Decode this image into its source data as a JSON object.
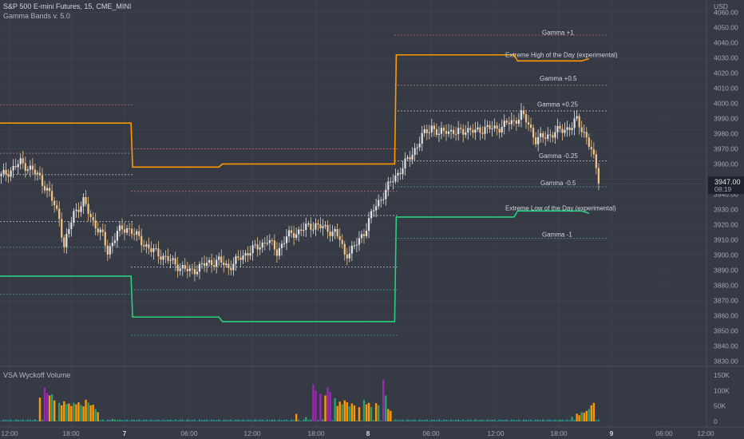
{
  "header": {
    "symbol_line": "S&P 500 E-mini Futures, 15, CME_MINI",
    "indicator_name": "Gamma Bands v. 5.0"
  },
  "volume_pane": {
    "label": "VSA Wyckoff Volume"
  },
  "currency_label": "USD",
  "price_badge": {
    "price": "3947.00",
    "countdown": "08:19"
  },
  "colors": {
    "background": "#363a45",
    "grid": "#41454f",
    "candle_up": "#e2e3e6",
    "candle_down": "#f2c587",
    "extreme_high": "#ff9800",
    "extreme_low": "#26d07c",
    "gamma_pos_1": "#e0607e",
    "gamma_pos_05": "#d07a8a",
    "gamma_025": "#c9ccd3",
    "gamma_neg_05": "#4aa3a0",
    "gamma_neg_1": "#3f9ea0",
    "vol_purple": "#9c27b0",
    "vol_orange": "#ff9800",
    "vol_green": "#2e9e6e",
    "vol_teal": "#2a8c8c"
  },
  "chart_data": {
    "type": "candlestick",
    "title": "S&P 500 E-mini Futures, 15, CME_MINI",
    "timeframe": "15",
    "x_ticks": [
      "12:00",
      "18:00",
      "7",
      "06:00",
      "12:00",
      "18:00",
      "8",
      "06:00",
      "12:00",
      "18:00",
      "9",
      "06:00",
      "12:00"
    ],
    "y_axis": {
      "ticks": [
        3830,
        3840,
        3850,
        3860,
        3870,
        3880,
        3890,
        3900,
        3910,
        3920,
        3930,
        3940,
        3950,
        3960,
        3970,
        3980,
        3990,
        4000,
        4010,
        4020,
        4030,
        4040,
        4050,
        4060
      ],
      "ylim": [
        3827,
        4064
      ]
    },
    "last_price": 3947.0,
    "close_path": [
      [
        0,
        3952
      ],
      [
        4,
        3956
      ],
      [
        8,
        3961
      ],
      [
        12,
        3957
      ],
      [
        16,
        3951
      ],
      [
        20,
        3940
      ],
      [
        24,
        3925
      ],
      [
        26,
        3905
      ],
      [
        30,
        3928
      ],
      [
        34,
        3935
      ],
      [
        38,
        3922
      ],
      [
        42,
        3912
      ],
      [
        44,
        3902
      ],
      [
        48,
        3915
      ],
      [
        52,
        3918
      ],
      [
        55,
        3914
      ],
      [
        58,
        3909
      ],
      [
        62,
        3903
      ],
      [
        66,
        3900
      ],
      [
        70,
        3896
      ],
      [
        74,
        3892
      ],
      [
        78,
        3889
      ],
      [
        82,
        3892
      ],
      [
        86,
        3895
      ],
      [
        90,
        3896
      ],
      [
        94,
        3892
      ],
      [
        98,
        3897
      ],
      [
        102,
        3902
      ],
      [
        106,
        3905
      ],
      [
        110,
        3910
      ],
      [
        114,
        3902
      ],
      [
        118,
        3912
      ],
      [
        122,
        3915
      ],
      [
        126,
        3918
      ],
      [
        130,
        3920
      ],
      [
        134,
        3917
      ],
      [
        138,
        3915
      ],
      [
        140,
        3910
      ],
      [
        142,
        3900
      ],
      [
        146,
        3905
      ],
      [
        150,
        3915
      ],
      [
        154,
        3930
      ],
      [
        158,
        3940
      ],
      [
        162,
        3950
      ],
      [
        166,
        3958
      ],
      [
        170,
        3967
      ],
      [
        174,
        3978
      ],
      [
        178,
        3985
      ],
      [
        181,
        3979
      ],
      [
        184,
        3983
      ],
      [
        188,
        3980
      ],
      [
        192,
        3983
      ],
      [
        196,
        3981
      ],
      [
        200,
        3984
      ],
      [
        204,
        3983
      ],
      [
        208,
        3986
      ],
      [
        212,
        3988
      ],
      [
        215,
        3993
      ],
      [
        218,
        3986
      ],
      [
        221,
        3976
      ],
      [
        225,
        3978
      ],
      [
        229,
        3981
      ],
      [
        233,
        3983
      ],
      [
        236,
        3985
      ],
      [
        238,
        3989
      ],
      [
        240,
        3983
      ],
      [
        242,
        3978
      ],
      [
        244,
        3968
      ],
      [
        246,
        3958
      ],
      [
        247,
        3947
      ]
    ],
    "volume": {
      "label": "VSA Wyckoff Volume",
      "ticks": [
        "0",
        "50K",
        "100K",
        "150K"
      ],
      "ylim": [
        0,
        160000
      ],
      "spikes": [
        [
          16,
          77000
        ],
        [
          18,
          109000
        ],
        [
          19,
          92000
        ],
        [
          20,
          84000
        ],
        [
          21,
          88000
        ],
        [
          22,
          68000
        ],
        [
          24,
          60000
        ],
        [
          25,
          52000
        ],
        [
          26,
          65000
        ],
        [
          27,
          56000
        ],
        [
          28,
          58000
        ],
        [
          29,
          50000
        ],
        [
          30,
          60000
        ],
        [
          31,
          55000
        ],
        [
          32,
          62000
        ],
        [
          33,
          53000
        ],
        [
          34,
          49000
        ],
        [
          35,
          70000
        ],
        [
          36,
          61000
        ],
        [
          37,
          52000
        ],
        [
          38,
          54000
        ],
        [
          39,
          40000
        ],
        [
          40,
          30000
        ],
        [
          46,
          8000
        ],
        [
          47,
          6000
        ],
        [
          48,
          4000
        ],
        [
          122,
          24000
        ],
        [
          126,
          14000
        ],
        [
          129,
          120000
        ],
        [
          130,
          100000
        ],
        [
          132,
          90000
        ],
        [
          134,
          84000
        ],
        [
          135,
          110000
        ],
        [
          136,
          95000
        ],
        [
          138,
          75000
        ],
        [
          139,
          50000
        ],
        [
          140,
          64000
        ],
        [
          141,
          55000
        ],
        [
          142,
          68000
        ],
        [
          143,
          62000
        ],
        [
          144,
          49000
        ],
        [
          145,
          58000
        ],
        [
          146,
          52000
        ],
        [
          148,
          46000
        ],
        [
          150,
          70000
        ],
        [
          151,
          55000
        ],
        [
          152,
          60000
        ],
        [
          153,
          47000
        ],
        [
          155,
          59000
        ],
        [
          156,
          52000
        ],
        [
          158,
          135000
        ],
        [
          159,
          84000
        ],
        [
          160,
          40000
        ],
        [
          161,
          34000
        ],
        [
          236,
          15000
        ],
        [
          238,
          25000
        ],
        [
          239,
          20000
        ],
        [
          240,
          30000
        ],
        [
          241,
          28000
        ],
        [
          242,
          34000
        ],
        [
          243,
          40000
        ],
        [
          244,
          52000
        ],
        [
          245,
          60000
        ]
      ],
      "base_volume": 5000
    }
  },
  "bands": {
    "labels": {
      "gamma_pos_1": "Gamma +1",
      "extreme_high": "Extreme High of the Day (experimental)",
      "gamma_pos_05": "Gamma +0.5",
      "gamma_pos_025": "Gamma +0.25",
      "gamma_neg_025": "Gamma -0.25",
      "gamma_neg_05": "Gamma -0.5",
      "extreme_low": "Extreme Low of the Day (experimental)",
      "gamma_neg_1": "Gamma -1"
    },
    "day1": {
      "from": 0,
      "to": 54,
      "g1": 3999,
      "ext_high": 3987,
      "g05": 3967,
      "g025": 3953,
      "gm025": 3922,
      "gm05": 3905,
      "ext_low": 3886,
      "gm1": 3874
    },
    "day2": {
      "from": 54,
      "to": 163,
      "g1": 3970,
      "ext_high": 3958,
      "ext_high2": 3960,
      "g05": 3942,
      "g025": 3926,
      "gm025": 3892,
      "gm05": 3877,
      "ext_low": 3859,
      "ext_low2": 3856,
      "gm1": 3847
    },
    "day3": {
      "from": 163,
      "to": 250,
      "g1": 4045,
      "ext_high": 4032,
      "ext_high2": 4028,
      "g05": 4012,
      "g025": 3995,
      "gm025": 3962,
      "gm05": 3945,
      "ext_low": 3925,
      "ext_low2": 3929,
      "gm1": 3911
    }
  }
}
